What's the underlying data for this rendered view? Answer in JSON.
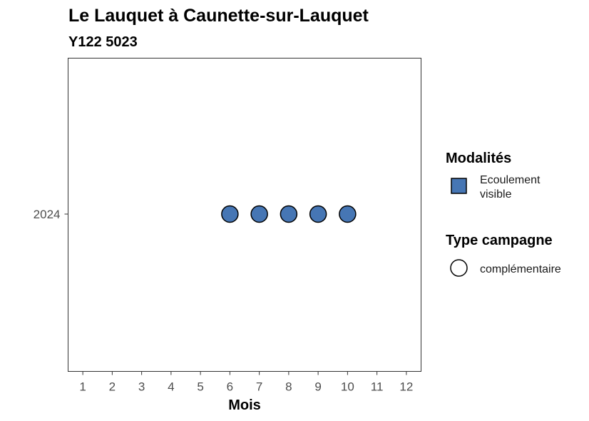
{
  "chart_data": {
    "type": "scatter",
    "title": "Le Lauquet à Caunette-sur-Lauquet",
    "subtitle": "Y122 5023",
    "xlabel": "Mois",
    "ylabel": "",
    "x_ticks": [
      1,
      2,
      3,
      4,
      5,
      6,
      7,
      8,
      9,
      10,
      11,
      12
    ],
    "xlim": [
      0.5,
      12.5
    ],
    "y_categories": [
      "2024"
    ],
    "grid": false,
    "legend_position": "right",
    "series": [
      {
        "modalite": "Ecoulement visible",
        "type_campagne": "complémentaire",
        "color": "#4676B4",
        "points": [
          {
            "x": 6,
            "y": "2024"
          },
          {
            "x": 7,
            "y": "2024"
          },
          {
            "x": 8,
            "y": "2024"
          },
          {
            "x": 9,
            "y": "2024"
          },
          {
            "x": 10,
            "y": "2024"
          }
        ]
      }
    ],
    "legends": [
      {
        "title": "Modalités",
        "shape": "square",
        "items": [
          {
            "label": [
              "Ecoulement",
              "visible"
            ],
            "color": "#4676B4"
          }
        ]
      },
      {
        "title": "Type campagne",
        "shape": "circle",
        "items": [
          {
            "label": [
              "complémentaire"
            ],
            "color": "#ffffff"
          }
        ]
      }
    ]
  }
}
